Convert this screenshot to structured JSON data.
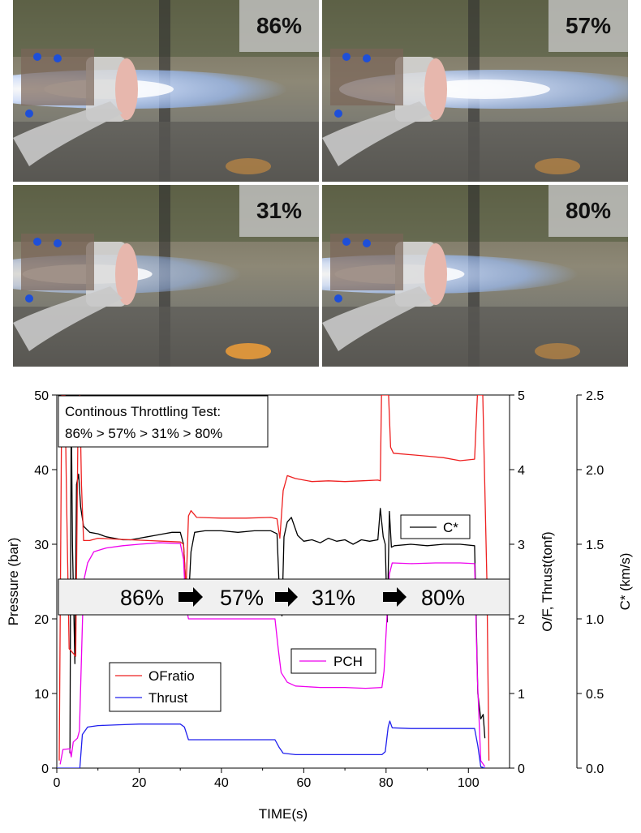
{
  "photos": [
    {
      "label": "86%"
    },
    {
      "label": "57%"
    },
    {
      "label": "31%"
    },
    {
      "label": "80%"
    }
  ],
  "chart_data": {
    "type": "line",
    "title": "Continous Throttling Test:",
    "subtitle": "86% > 57% > 31% > 80%",
    "xlabel": "TIME(s)",
    "ylabel_left": "Pressure (bar)",
    "ylabel_right1": "O/F, Thrust(tonf)",
    "ylabel_right2": "C* (km/s)",
    "xlim": [
      0,
      110
    ],
    "ylim_left": [
      0,
      50
    ],
    "ylim_right1": [
      0,
      5
    ],
    "ylim_right2": [
      0,
      2.5
    ],
    "x_ticks": [
      "0",
      "20",
      "40",
      "60",
      "80",
      "100"
    ],
    "y_left_ticks": [
      "0",
      "10",
      "20",
      "30",
      "40",
      "50"
    ],
    "y_right1_ticks": [
      "0",
      "1",
      "2",
      "3",
      "4",
      "5"
    ],
    "y_right2_ticks": [
      "0.0",
      "0.5",
      "1.0",
      "1.5",
      "2.0",
      "2.5"
    ],
    "band_labels": [
      "86%",
      "57%",
      "31%",
      "80%"
    ],
    "grid": false,
    "series": [
      {
        "name": "C*",
        "axis": "right2",
        "color": "#000000",
        "points": [
          [
            3.2,
            0.1
          ],
          [
            3.5,
            2.45
          ],
          [
            3.8,
            1.5
          ],
          [
            4.4,
            0.7
          ],
          [
            4.8,
            1.9
          ],
          [
            5.3,
            1.97
          ],
          [
            5.8,
            1.75
          ],
          [
            6.5,
            1.62
          ],
          [
            8,
            1.58
          ],
          [
            10,
            1.57
          ],
          [
            12,
            1.55
          ],
          [
            14,
            1.54
          ],
          [
            16,
            1.53
          ],
          [
            18,
            1.53
          ],
          [
            20,
            1.54
          ],
          [
            22,
            1.55
          ],
          [
            24,
            1.56
          ],
          [
            26,
            1.57
          ],
          [
            28,
            1.58
          ],
          [
            30,
            1.58
          ],
          [
            30.8,
            1.5
          ],
          [
            31.5,
            1.15
          ],
          [
            32,
            1.12
          ],
          [
            32.6,
            1.45
          ],
          [
            33.5,
            1.58
          ],
          [
            36,
            1.59
          ],
          [
            40,
            1.59
          ],
          [
            44,
            1.58
          ],
          [
            48,
            1.59
          ],
          [
            52,
            1.59
          ],
          [
            53.5,
            1.57
          ],
          [
            54.2,
            1.1
          ],
          [
            54.7,
            1.02
          ],
          [
            55.2,
            1.55
          ],
          [
            56,
            1.65
          ],
          [
            57,
            1.68
          ],
          [
            58.5,
            1.56
          ],
          [
            60,
            1.52
          ],
          [
            62,
            1.53
          ],
          [
            64,
            1.51
          ],
          [
            66,
            1.54
          ],
          [
            68,
            1.52
          ],
          [
            70,
            1.53
          ],
          [
            72,
            1.5
          ],
          [
            74,
            1.53
          ],
          [
            76,
            1.52
          ],
          [
            78,
            1.53
          ],
          [
            78.6,
            1.74
          ],
          [
            79.3,
            1.55
          ],
          [
            79.8,
            1.5
          ],
          [
            80.3,
            0.98
          ],
          [
            80.8,
            1.72
          ],
          [
            81.3,
            1.48
          ],
          [
            82,
            1.49
          ],
          [
            86,
            1.5
          ],
          [
            90,
            1.49
          ],
          [
            94,
            1.5
          ],
          [
            98,
            1.5
          ],
          [
            101.5,
            1.49
          ],
          [
            102.3,
            0.5
          ],
          [
            103,
            0.33
          ],
          [
            103.6,
            0.36
          ],
          [
            104,
            0.2
          ]
        ]
      },
      {
        "name": "OFratio",
        "axis": "right1",
        "color": "#ee2020",
        "points": [
          [
            0.6,
            0.1
          ],
          [
            1.2,
            5.0
          ],
          [
            2.0,
            5.0
          ],
          [
            2.4,
            3.5
          ],
          [
            3.0,
            1.6
          ],
          [
            3.8,
            1.55
          ],
          [
            4.6,
            1.5
          ],
          [
            5.2,
            4.9
          ],
          [
            5.6,
            5.0
          ],
          [
            6.0,
            3.8
          ],
          [
            6.5,
            3.05
          ],
          [
            8,
            3.05
          ],
          [
            10,
            3.08
          ],
          [
            14,
            3.07
          ],
          [
            18,
            3.06
          ],
          [
            22,
            3.05
          ],
          [
            26,
            3.04
          ],
          [
            30,
            3.03
          ],
          [
            30.8,
            3.0
          ],
          [
            31.4,
            2.4
          ],
          [
            32,
            3.38
          ],
          [
            32.6,
            3.45
          ],
          [
            34,
            3.36
          ],
          [
            40,
            3.35
          ],
          [
            46,
            3.35
          ],
          [
            52,
            3.36
          ],
          [
            53.5,
            3.34
          ],
          [
            54.2,
            3.08
          ],
          [
            55,
            3.72
          ],
          [
            56,
            3.92
          ],
          [
            58,
            3.88
          ],
          [
            62,
            3.84
          ],
          [
            66,
            3.85
          ],
          [
            70,
            3.84
          ],
          [
            74,
            3.85
          ],
          [
            78,
            3.86
          ],
          [
            78.6,
            3.85
          ],
          [
            78.9,
            5.0
          ],
          [
            80.6,
            5.0
          ],
          [
            81.1,
            4.3
          ],
          [
            81.8,
            4.22
          ],
          [
            86,
            4.2
          ],
          [
            90,
            4.18
          ],
          [
            94,
            4.16
          ],
          [
            98,
            4.12
          ],
          [
            101.5,
            4.14
          ],
          [
            102.2,
            5.0
          ],
          [
            103.5,
            5.0
          ],
          [
            104.5,
            2.5
          ],
          [
            105,
            0.1
          ]
        ]
      },
      {
        "name": "PCH",
        "axis": "left",
        "color": "#ee00ee",
        "points": [
          [
            0.8,
            0.5
          ],
          [
            1.5,
            2.5
          ],
          [
            3.2,
            2.6
          ],
          [
            3.5,
            1.5
          ],
          [
            4,
            3.5
          ],
          [
            5,
            4.0
          ],
          [
            5.5,
            5.0
          ],
          [
            6.5,
            25.0
          ],
          [
            7.5,
            27.5
          ],
          [
            9,
            29.0
          ],
          [
            12,
            29.5
          ],
          [
            16,
            29.8
          ],
          [
            20,
            30.0
          ],
          [
            25,
            30.2
          ],
          [
            30,
            30.1
          ],
          [
            30.8,
            28.0
          ],
          [
            31.3,
            22.0
          ],
          [
            32,
            20.0
          ],
          [
            36,
            20.0
          ],
          [
            44,
            20.0
          ],
          [
            53,
            20.0
          ],
          [
            53.8,
            16.0
          ],
          [
            54.5,
            12.8
          ],
          [
            56,
            11.5
          ],
          [
            58,
            11.0
          ],
          [
            64,
            10.8
          ],
          [
            70,
            10.8
          ],
          [
            75,
            10.7
          ],
          [
            79,
            10.8
          ],
          [
            79.5,
            13.0
          ],
          [
            80.2,
            20.0
          ],
          [
            80.8,
            26.0
          ],
          [
            81.5,
            27.5
          ],
          [
            86,
            27.4
          ],
          [
            92,
            27.5
          ],
          [
            98,
            27.5
          ],
          [
            101.5,
            27.4
          ],
          [
            102.2,
            12.0
          ],
          [
            103,
            1.0
          ],
          [
            104,
            0.2
          ]
        ]
      },
      {
        "name": "Thrust",
        "axis": "right1",
        "color": "#2020ee",
        "points": [
          [
            0,
            0.0
          ],
          [
            5.6,
            0.0
          ],
          [
            6.2,
            0.45
          ],
          [
            7.5,
            0.55
          ],
          [
            10,
            0.57
          ],
          [
            15,
            0.58
          ],
          [
            20,
            0.59
          ],
          [
            25,
            0.59
          ],
          [
            30,
            0.59
          ],
          [
            31,
            0.55
          ],
          [
            32,
            0.38
          ],
          [
            36,
            0.38
          ],
          [
            44,
            0.38
          ],
          [
            53,
            0.38
          ],
          [
            54,
            0.28
          ],
          [
            55,
            0.2
          ],
          [
            58,
            0.18
          ],
          [
            66,
            0.18
          ],
          [
            74,
            0.18
          ],
          [
            79,
            0.18
          ],
          [
            79.8,
            0.22
          ],
          [
            80.5,
            0.55
          ],
          [
            80.9,
            0.63
          ],
          [
            81.5,
            0.54
          ],
          [
            86,
            0.53
          ],
          [
            92,
            0.53
          ],
          [
            98,
            0.53
          ],
          [
            101.5,
            0.53
          ],
          [
            102.3,
            0.3
          ],
          [
            103,
            0.02
          ],
          [
            104,
            0.0
          ]
        ]
      }
    ]
  }
}
